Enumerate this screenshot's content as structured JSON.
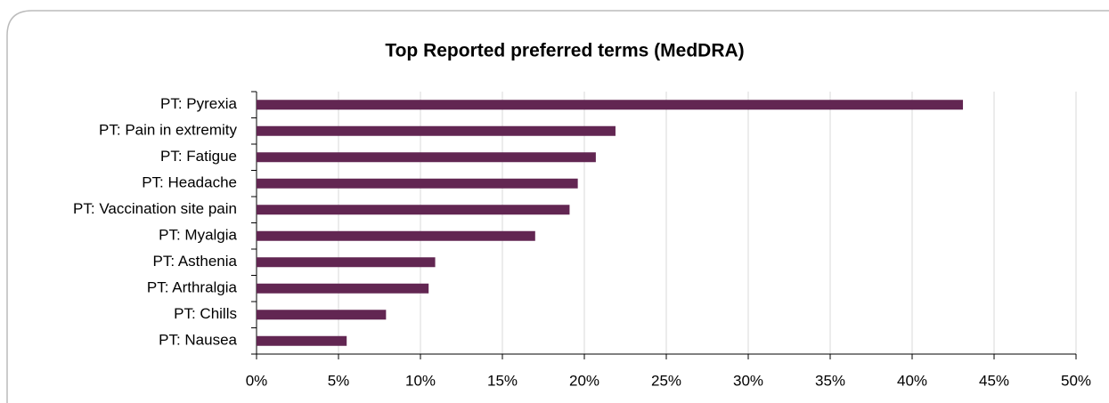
{
  "chart_data": {
    "type": "barh",
    "title": "Top Reported preferred terms (MedDRA)",
    "categories": [
      "PT: Pyrexia",
      "PT: Pain in extremity",
      "PT: Fatigue",
      "PT: Headache",
      "PT: Vaccination site pain",
      "PT: Myalgia",
      "PT: Asthenia",
      "PT: Arthralgia",
      "PT: Chills",
      "PT: Nausea"
    ],
    "values": [
      43.1,
      21.9,
      20.7,
      19.6,
      19.1,
      17.0,
      10.9,
      10.5,
      7.9,
      5.5
    ],
    "color": "#622652",
    "xlim": [
      0,
      50
    ],
    "xticks": [
      {
        "value": 0,
        "label": "0%"
      },
      {
        "value": 5,
        "label": "5%"
      },
      {
        "value": 10,
        "label": "10%"
      },
      {
        "value": 15,
        "label": "15%"
      },
      {
        "value": 20,
        "label": "20%"
      },
      {
        "value": 25,
        "label": "25%"
      },
      {
        "value": 30,
        "label": "30%"
      },
      {
        "value": 35,
        "label": "35%"
      },
      {
        "value": 40,
        "label": "40%"
      },
      {
        "value": 45,
        "label": "45%"
      },
      {
        "value": 50,
        "label": "50%"
      }
    ],
    "grid": true
  }
}
